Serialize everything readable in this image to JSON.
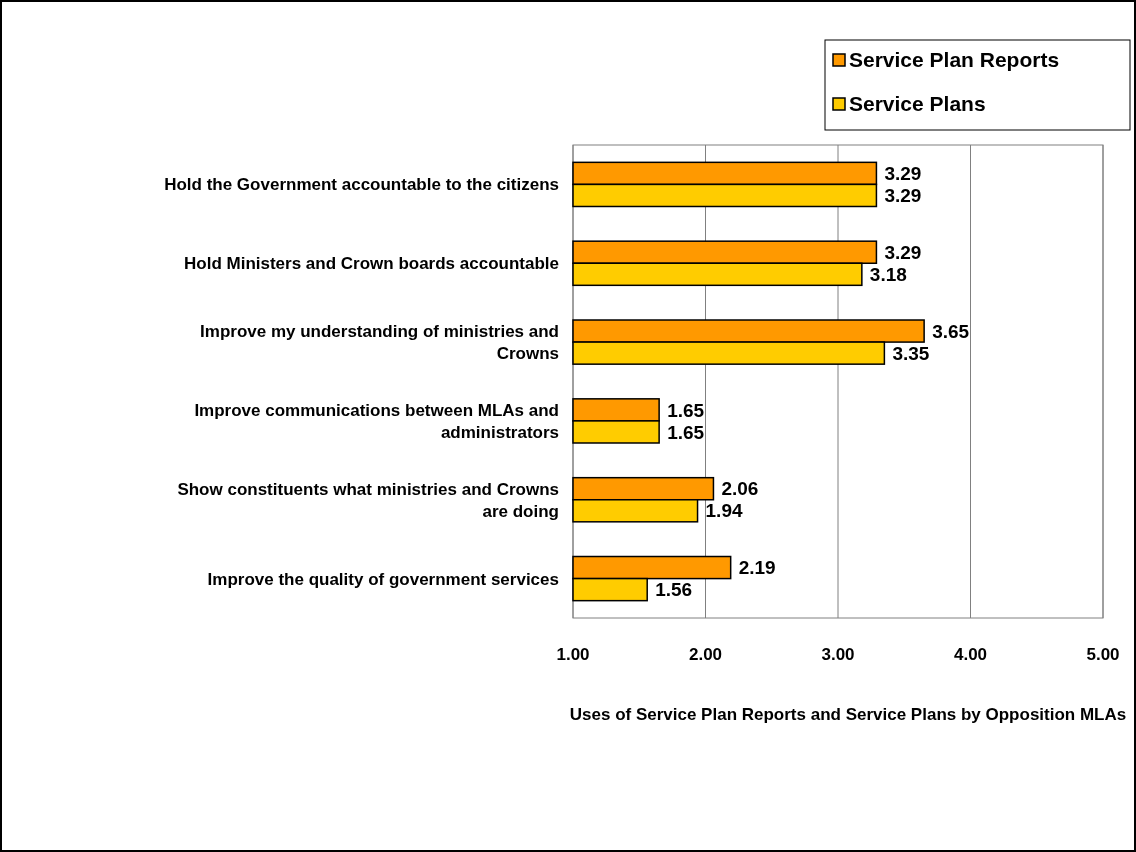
{
  "chart_data": {
    "type": "bar",
    "orientation": "horizontal",
    "xlabel": "Uses of Service Plan Reports and Service Plans by Opposition MLAs",
    "categories": [
      "Hold the Government accountable to the citizens",
      "Hold Ministers and Crown boards accountable",
      "Improve my understanding of ministries and Crowns",
      "Improve communications between MLAs and administrators",
      "Show constituents what ministries and Crowns are doing",
      "Improve the quality of government services"
    ],
    "series": [
      {
        "name": "Service Plan Reports",
        "color": "#ff9900",
        "values": [
          3.29,
          3.29,
          3.65,
          1.65,
          2.06,
          2.19
        ]
      },
      {
        "name": "Service Plans",
        "color": "#ffcc00",
        "values": [
          3.29,
          3.18,
          3.35,
          1.65,
          1.94,
          1.56
        ]
      }
    ],
    "xlim": [
      1,
      5
    ],
    "xticks": [
      {
        "value": 1,
        "label": "1.00"
      },
      {
        "value": 2,
        "label": "2.00"
      },
      {
        "value": 3,
        "label": "3.00"
      },
      {
        "value": 4,
        "label": "4.00"
      },
      {
        "value": 5,
        "label": "5.00"
      }
    ],
    "grid": "x",
    "legend": "top right",
    "data_labels": true
  }
}
